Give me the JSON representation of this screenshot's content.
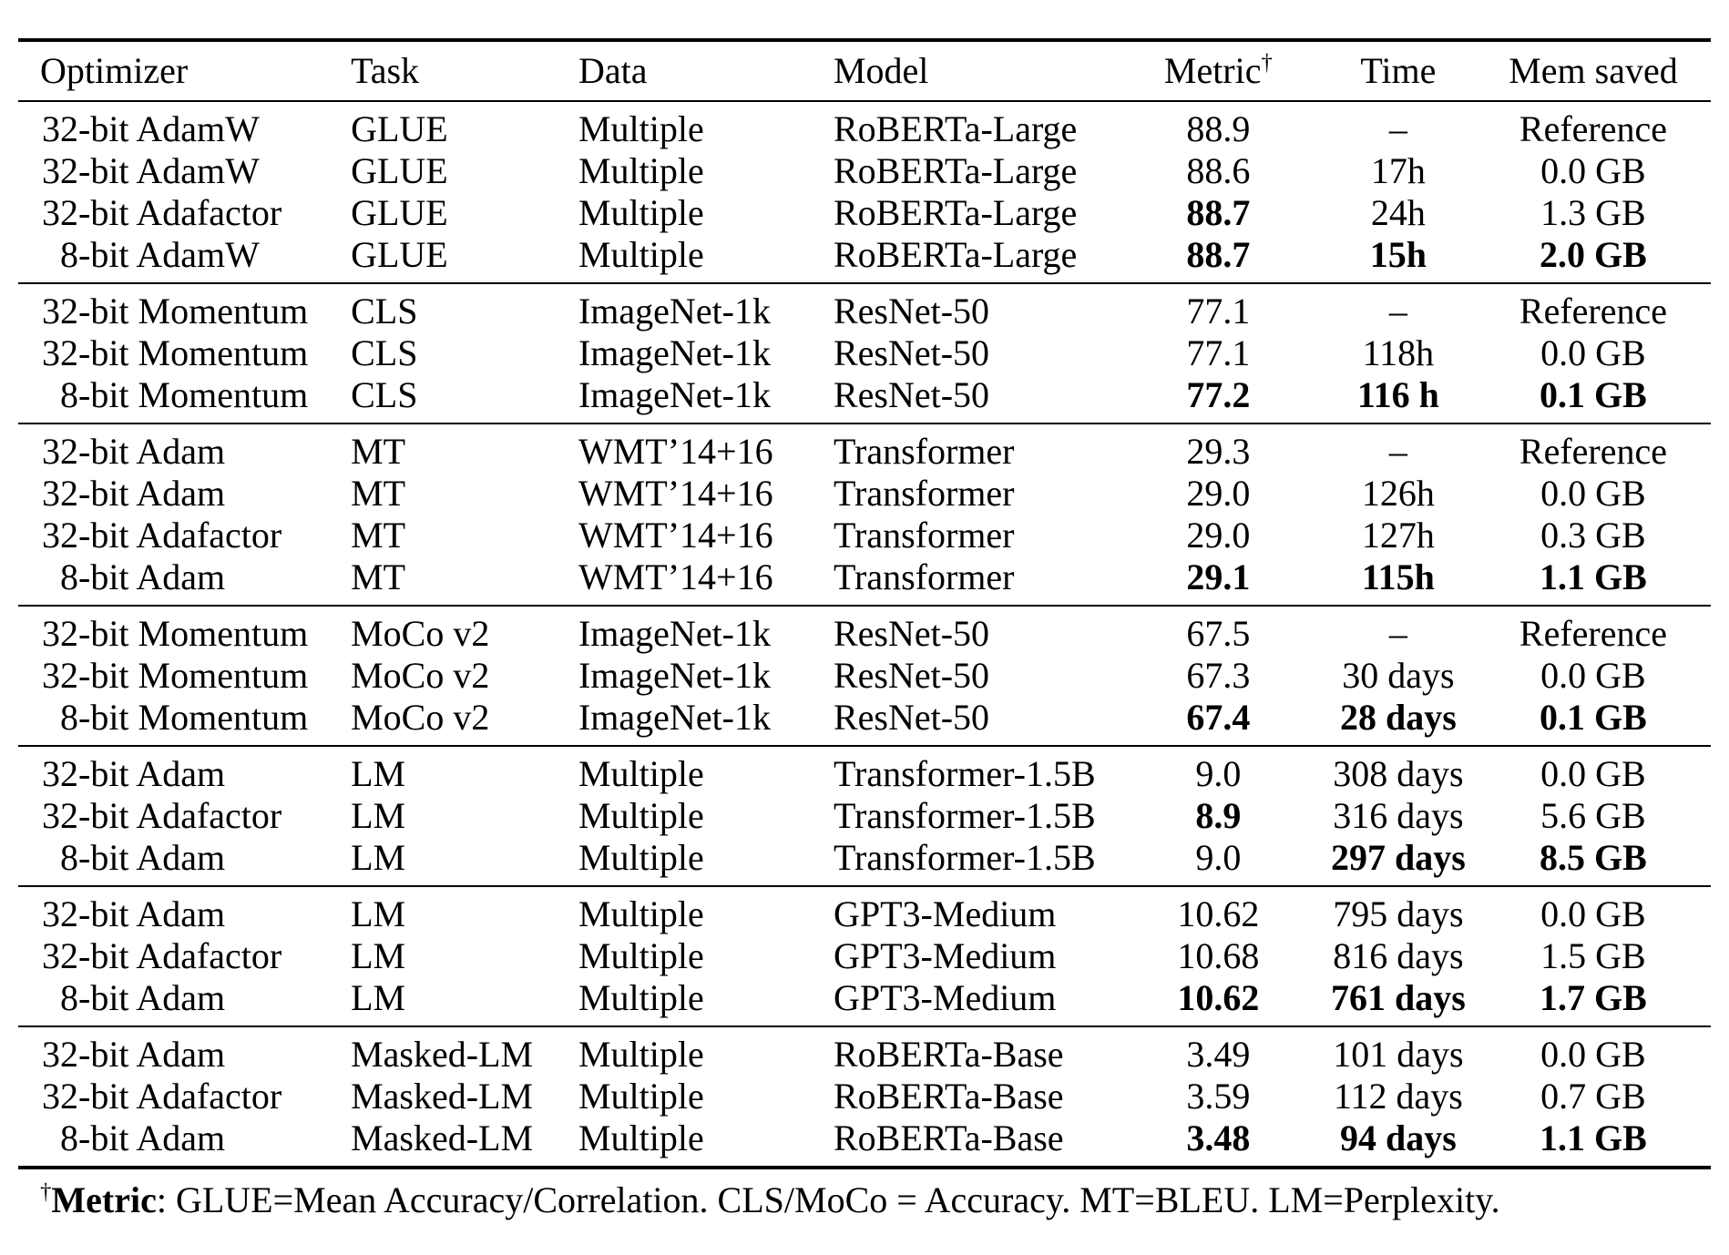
{
  "table": {
    "columns": [
      {
        "label": "Optimizer",
        "align": "left"
      },
      {
        "label": "Task",
        "align": "left"
      },
      {
        "label": "Data",
        "align": "left"
      },
      {
        "label": "Model",
        "align": "left"
      },
      {
        "label": "Metric",
        "sup": "†",
        "align": "center"
      },
      {
        "label": "Time",
        "align": "center"
      },
      {
        "label": "Mem saved",
        "align": "center"
      }
    ],
    "groups": [
      {
        "rows": [
          {
            "optimizer": "32-bit AdamW",
            "task": "GLUE",
            "data": "Multiple",
            "model": "RoBERTa-Large",
            "metric": "88.9",
            "time": "–",
            "mem": "Reference",
            "bold": []
          },
          {
            "optimizer": "32-bit AdamW",
            "task": "GLUE",
            "data": "Multiple",
            "model": "RoBERTa-Large",
            "metric": "88.6",
            "time": "17h",
            "mem": "0.0 GB",
            "bold": []
          },
          {
            "optimizer": "32-bit Adafactor",
            "task": "GLUE",
            "data": "Multiple",
            "model": "RoBERTa-Large",
            "metric": "88.7",
            "time": "24h",
            "mem": "1.3 GB",
            "bold": [
              "metric"
            ]
          },
          {
            "optimizer": "8-bit AdamW",
            "task": "GLUE",
            "data": "Multiple",
            "model": "RoBERTa-Large",
            "metric": "88.7",
            "time": "15h",
            "mem": "2.0 GB",
            "bold": [
              "metric",
              "time",
              "mem"
            ]
          }
        ]
      },
      {
        "rows": [
          {
            "optimizer": "32-bit Momentum",
            "task": "CLS",
            "data": "ImageNet-1k",
            "model": "ResNet-50",
            "metric": "77.1",
            "time": "–",
            "mem": "Reference",
            "bold": []
          },
          {
            "optimizer": "32-bit Momentum",
            "task": "CLS",
            "data": "ImageNet-1k",
            "model": "ResNet-50",
            "metric": "77.1",
            "time": "118h",
            "mem": "0.0 GB",
            "bold": []
          },
          {
            "optimizer": "8-bit Momentum",
            "task": "CLS",
            "data": "ImageNet-1k",
            "model": "ResNet-50",
            "metric": "77.2",
            "time": "116 h",
            "mem": "0.1 GB",
            "bold": [
              "metric",
              "time",
              "mem"
            ]
          }
        ]
      },
      {
        "rows": [
          {
            "optimizer": "32-bit Adam",
            "task": "MT",
            "data": "WMT’14+16",
            "model": "Transformer",
            "metric": "29.3",
            "time": "–",
            "mem": "Reference",
            "bold": []
          },
          {
            "optimizer": "32-bit Adam",
            "task": "MT",
            "data": "WMT’14+16",
            "model": "Transformer",
            "metric": "29.0",
            "time": "126h",
            "mem": "0.0 GB",
            "bold": []
          },
          {
            "optimizer": "32-bit Adafactor",
            "task": "MT",
            "data": "WMT’14+16",
            "model": "Transformer",
            "metric": "29.0",
            "time": "127h",
            "mem": "0.3 GB",
            "bold": []
          },
          {
            "optimizer": "8-bit Adam",
            "task": "MT",
            "data": "WMT’14+16",
            "model": "Transformer",
            "metric": "29.1",
            "time": "115h",
            "mem": "1.1 GB",
            "bold": [
              "metric",
              "time",
              "mem"
            ]
          }
        ]
      },
      {
        "rows": [
          {
            "optimizer": "32-bit Momentum",
            "task": "MoCo v2",
            "data": "ImageNet-1k",
            "model": "ResNet-50",
            "metric": "67.5",
            "time": "–",
            "mem": "Reference",
            "bold": []
          },
          {
            "optimizer": "32-bit Momentum",
            "task": "MoCo v2",
            "data": "ImageNet-1k",
            "model": "ResNet-50",
            "metric": "67.3",
            "time": "30 days",
            "mem": "0.0 GB",
            "bold": []
          },
          {
            "optimizer": "8-bit Momentum",
            "task": "MoCo v2",
            "data": "ImageNet-1k",
            "model": "ResNet-50",
            "metric": "67.4",
            "time": "28 days",
            "mem": "0.1 GB",
            "bold": [
              "metric",
              "time",
              "mem"
            ]
          }
        ]
      },
      {
        "rows": [
          {
            "optimizer": "32-bit Adam",
            "task": "LM",
            "data": "Multiple",
            "model": "Transformer-1.5B",
            "metric": "9.0",
            "time": "308 days",
            "mem": "0.0 GB",
            "bold": []
          },
          {
            "optimizer": "32-bit Adafactor",
            "task": "LM",
            "data": "Multiple",
            "model": "Transformer-1.5B",
            "metric": "8.9",
            "time": "316 days",
            "mem": "5.6 GB",
            "bold": [
              "metric"
            ]
          },
          {
            "optimizer": "8-bit Adam",
            "task": "LM",
            "data": "Multiple",
            "model": "Transformer-1.5B",
            "metric": "9.0",
            "time": "297 days",
            "mem": "8.5 GB",
            "bold": [
              "time",
              "mem"
            ]
          }
        ]
      },
      {
        "rows": [
          {
            "optimizer": "32-bit Adam",
            "task": "LM",
            "data": "Multiple",
            "model": "GPT3-Medium",
            "metric": "10.62",
            "time": "795 days",
            "mem": "0.0 GB",
            "bold": []
          },
          {
            "optimizer": "32-bit Adafactor",
            "task": "LM",
            "data": "Multiple",
            "model": "GPT3-Medium",
            "metric": "10.68",
            "time": "816 days",
            "mem": "1.5 GB",
            "bold": []
          },
          {
            "optimizer": "8-bit Adam",
            "task": "LM",
            "data": "Multiple",
            "model": "GPT3-Medium",
            "metric": "10.62",
            "time": "761 days",
            "mem": "1.7 GB",
            "bold": [
              "metric",
              "time",
              "mem"
            ]
          }
        ]
      },
      {
        "rows": [
          {
            "optimizer": "32-bit Adam",
            "task": "Masked-LM",
            "data": "Multiple",
            "model": "RoBERTa-Base",
            "metric": "3.49",
            "time": "101 days",
            "mem": "0.0 GB",
            "bold": []
          },
          {
            "optimizer": "32-bit Adafactor",
            "task": "Masked-LM",
            "data": "Multiple",
            "model": "RoBERTa-Base",
            "metric": "3.59",
            "time": "112 days",
            "mem": "0.7 GB",
            "bold": []
          },
          {
            "optimizer": "8-bit Adam",
            "task": "Masked-LM",
            "data": "Multiple",
            "model": "RoBERTa-Base",
            "metric": "3.48",
            "time": "94 days",
            "mem": "1.1 GB",
            "bold": [
              "metric",
              "time",
              "mem"
            ]
          }
        ]
      }
    ]
  },
  "footnote": {
    "dagger": "†",
    "label": "Metric",
    "text": ": GLUE=Mean Accuracy/Correlation. CLS/MoCo = Accuracy. MT=BLEU. LM=Perplexity."
  }
}
